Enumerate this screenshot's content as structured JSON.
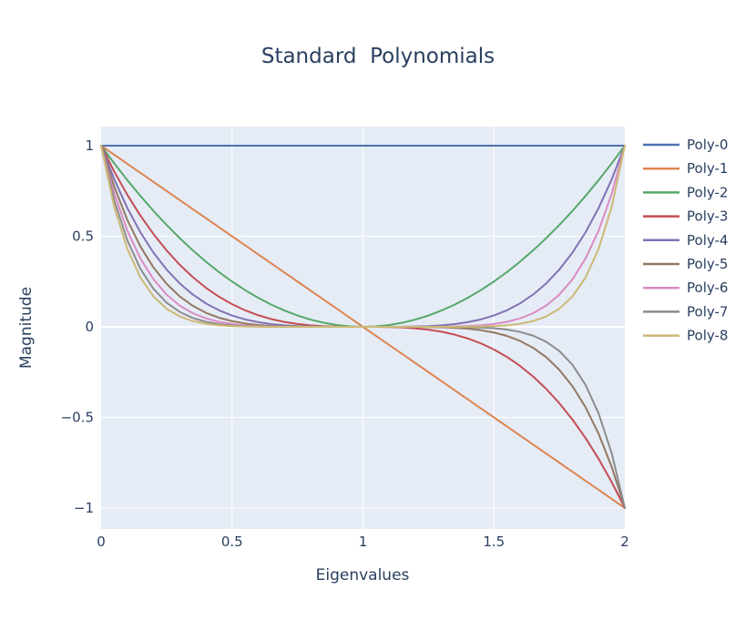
{
  "chart_data": {
    "type": "line",
    "title": "Standard  Polynomials",
    "xlabel": "Eigenvalues",
    "ylabel": "Magnitude",
    "xlim": [
      0,
      2
    ],
    "ylim": [
      -1.1,
      1.1
    ],
    "grid": true,
    "legend_position": "right",
    "x_ticks": [
      0,
      0.5,
      1,
      1.5,
      2
    ],
    "x_tick_labels": [
      "0",
      "0.5",
      "1",
      "1.5",
      "2"
    ],
    "y_ticks": [
      1,
      0.5,
      0,
      -0.5,
      -1
    ],
    "y_tick_labels": [
      "1",
      "0.5",
      "0",
      "−0.5",
      "−1"
    ],
    "x": [
      0,
      0.05,
      0.1,
      0.15,
      0.2,
      0.25,
      0.3,
      0.35,
      0.4,
      0.45,
      0.5,
      0.55,
      0.6,
      0.65,
      0.7,
      0.75,
      0.8,
      0.85,
      0.9,
      0.95,
      1,
      1.05,
      1.1,
      1.15,
      1.2,
      1.25,
      1.3,
      1.35,
      1.4,
      1.45,
      1.5,
      1.55,
      1.6,
      1.65,
      1.7,
      1.75,
      1.8,
      1.85,
      1.9,
      1.95,
      2
    ],
    "series": [
      {
        "name": "Poly-0",
        "color": "#4c72b0",
        "values": [
          1,
          1,
          1,
          1,
          1,
          1,
          1,
          1,
          1,
          1,
          1,
          1,
          1,
          1,
          1,
          1,
          1,
          1,
          1,
          1,
          1,
          1,
          1,
          1,
          1,
          1,
          1,
          1,
          1,
          1,
          1,
          1,
          1,
          1,
          1,
          1,
          1,
          1,
          1,
          1,
          1
        ]
      },
      {
        "name": "Poly-1",
        "color": "#dd8452",
        "values": [
          1,
          0.95,
          0.9,
          0.85,
          0.8,
          0.75,
          0.7,
          0.65,
          0.6,
          0.55,
          0.5,
          0.45,
          0.4,
          0.35,
          0.3,
          0.25,
          0.2,
          0.15,
          0.1,
          0.05,
          0,
          -0.05,
          -0.1,
          -0.15,
          -0.2,
          -0.25,
          -0.3,
          -0.35,
          -0.4,
          -0.45,
          -0.5,
          -0.55,
          -0.6,
          -0.65,
          -0.7,
          -0.75,
          -0.8,
          -0.85,
          -0.9,
          -0.95,
          -1
        ]
      },
      {
        "name": "Poly-2",
        "color": "#55a868",
        "values": [
          1,
          0.9025,
          0.81,
          0.7225,
          0.64,
          0.5625,
          0.49,
          0.4225,
          0.36,
          0.3025,
          0.25,
          0.2025,
          0.16,
          0.1225,
          0.09,
          0.0625,
          0.04,
          0.0225,
          0.01,
          0.0025,
          0,
          0.0025,
          0.01,
          0.0225,
          0.04,
          0.0625,
          0.09,
          0.1225,
          0.16,
          0.2025,
          0.25,
          0.3025,
          0.36,
          0.4225,
          0.49,
          0.5625,
          0.64,
          0.7225,
          0.81,
          0.9025,
          1
        ]
      },
      {
        "name": "Poly-3",
        "color": "#c44e52",
        "values": [
          1,
          0.857375,
          0.729,
          0.614125,
          0.512,
          0.421875,
          0.343,
          0.274625,
          0.216,
          0.166375,
          0.125,
          0.091125,
          0.064,
          0.042875,
          0.027,
          0.015625,
          0.008,
          0.003375,
          0.001,
          0.000125,
          0,
          -0.000125,
          -0.001,
          -0.003375,
          -0.008,
          -0.015625,
          -0.027,
          -0.042875,
          -0.064,
          -0.091125,
          -0.125,
          -0.166375,
          -0.216,
          -0.274625,
          -0.343,
          -0.421875,
          -0.512,
          -0.614125,
          -0.729,
          -0.857375,
          -1
        ]
      },
      {
        "name": "Poly-4",
        "color": "#8172b3",
        "values": [
          1,
          0.8145,
          0.6561,
          0.522,
          0.4096,
          0.3164,
          0.2401,
          0.1785,
          0.1296,
          0.0915,
          0.0625,
          0.041,
          0.0256,
          0.015,
          0.0081,
          0.0039,
          0.0016,
          0.0005,
          0.0001,
          0,
          0,
          0,
          0.0001,
          0.0005,
          0.0016,
          0.0039,
          0.0081,
          0.015,
          0.0256,
          0.041,
          0.0625,
          0.0915,
          0.1296,
          0.1785,
          0.2401,
          0.3164,
          0.4096,
          0.522,
          0.6561,
          0.8145,
          1
        ]
      },
      {
        "name": "Poly-5",
        "color": "#937860",
        "values": [
          1,
          0.7738,
          0.5905,
          0.4437,
          0.3277,
          0.2373,
          0.1681,
          0.116,
          0.0778,
          0.0503,
          0.0313,
          0.0185,
          0.0102,
          0.0053,
          0.0024,
          0.001,
          0.0003,
          0.0001,
          0,
          0,
          0,
          0,
          0,
          -0.0001,
          -0.0003,
          -0.001,
          -0.0024,
          -0.0053,
          -0.0102,
          -0.0185,
          -0.0313,
          -0.0503,
          -0.0778,
          -0.116,
          -0.1681,
          -0.2373,
          -0.3277,
          -0.4437,
          -0.5905,
          -0.7738,
          -1
        ]
      },
      {
        "name": "Poly-6",
        "color": "#da8bc3",
        "values": [
          1,
          0.7351,
          0.5314,
          0.3771,
          0.2621,
          0.178,
          0.1176,
          0.0754,
          0.0467,
          0.0277,
          0.0156,
          0.0083,
          0.0041,
          0.0018,
          0.0007,
          0.0002,
          0.0001,
          0,
          0,
          0,
          0,
          0,
          0,
          0,
          0.0001,
          0.0002,
          0.0007,
          0.0018,
          0.0041,
          0.0083,
          0.0156,
          0.0277,
          0.0467,
          0.0754,
          0.1176,
          0.178,
          0.2621,
          0.3771,
          0.5314,
          0.7351,
          1
        ]
      },
      {
        "name": "Poly-7",
        "color": "#8c8c8c",
        "values": [
          1,
          0.6983,
          0.4783,
          0.3206,
          0.2097,
          0.1335,
          0.0824,
          0.049,
          0.028,
          0.0152,
          0.0078,
          0.0037,
          0.0016,
          0.0006,
          0.0002,
          0.0001,
          0,
          0,
          0,
          0,
          0,
          0,
          0,
          0,
          0,
          -0.0001,
          -0.0002,
          -0.0006,
          -0.0016,
          -0.0037,
          -0.0078,
          -0.0152,
          -0.028,
          -0.049,
          -0.0824,
          -0.1335,
          -0.2097,
          -0.3206,
          -0.4783,
          -0.6983,
          -1
        ]
      },
      {
        "name": "Poly-8",
        "color": "#ccb974",
        "values": [
          1,
          0.6634,
          0.4305,
          0.2725,
          0.1678,
          0.1001,
          0.0576,
          0.0319,
          0.0168,
          0.0084,
          0.0039,
          0.0017,
          0.0007,
          0.0002,
          0.0001,
          0,
          0,
          0,
          0,
          0,
          0,
          0,
          0,
          0,
          0,
          0,
          0.0001,
          0.0002,
          0.0007,
          0.0017,
          0.0039,
          0.0084,
          0.0168,
          0.0319,
          0.0576,
          0.1001,
          0.1678,
          0.2725,
          0.4305,
          0.6634,
          1
        ]
      }
    ]
  }
}
